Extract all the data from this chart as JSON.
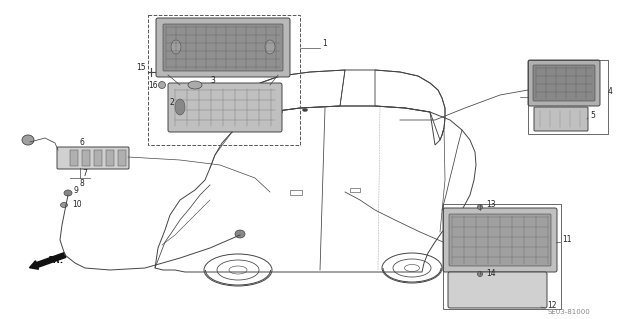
{
  "bg_color": "#ffffff",
  "diagram_code": "SE03-81000",
  "line_color": "#444444",
  "text_color": "#222222",
  "gray_fill": "#c8c8c8",
  "dark_gray": "#888888",
  "light_gray": "#dddddd"
}
